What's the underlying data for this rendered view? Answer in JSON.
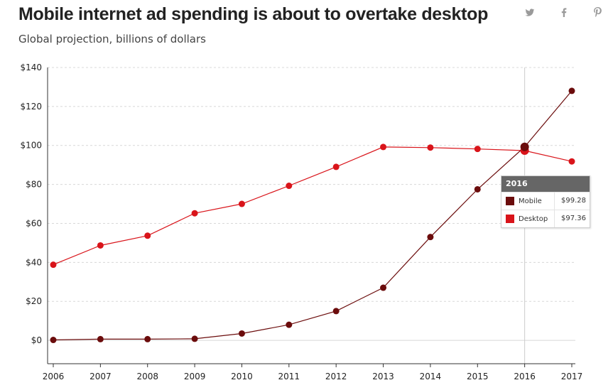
{
  "title": "Mobile internet ad spending is about to overtake desktop",
  "subtitle": "Global projection, billions of dollars",
  "share": {
    "twitter_icon": "twitter-icon",
    "facebook_icon": "facebook-icon",
    "pinterest_icon": "pinterest-icon"
  },
  "colors": {
    "mobile": "#6b0c0c",
    "desktop": "#d9141a",
    "grid": "#d8d8d8",
    "axis": "#333333"
  },
  "chart_data": {
    "type": "line",
    "x": [
      2006,
      2007,
      2008,
      2009,
      2010,
      2011,
      2012,
      2013,
      2014,
      2015,
      2016,
      2017
    ],
    "xlim": [
      2006,
      2017
    ],
    "ylim": [
      -12,
      140
    ],
    "ytick_values": [
      0,
      20,
      40,
      60,
      80,
      100,
      120,
      140
    ],
    "ytick_labels": [
      "$0",
      "$20",
      "$40",
      "$60",
      "$80",
      "$100",
      "$120",
      "$140"
    ],
    "xtick_labels": [
      "2006",
      "2007",
      "2008",
      "2009",
      "2010",
      "2011",
      "2012",
      "2013",
      "2014",
      "2015",
      "2016",
      "2017"
    ],
    "grid": true,
    "series": [
      {
        "name": "Mobile",
        "values": [
          0.2,
          0.6,
          0.6,
          0.8,
          3.5,
          8.0,
          15.0,
          27.0,
          53.0,
          77.5,
          99.28,
          128.0
        ]
      },
      {
        "name": "Desktop",
        "values": [
          38.8,
          48.7,
          53.7,
          65.2,
          70.0,
          79.3,
          89.0,
          99.2,
          98.9,
          98.2,
          97.36,
          91.8
        ]
      }
    ],
    "highlight_x": 2016
  },
  "tooltip": {
    "year": "2016",
    "rows": [
      {
        "name": "Mobile",
        "value": "$99.28"
      },
      {
        "name": "Desktop",
        "value": "$97.36"
      }
    ]
  }
}
